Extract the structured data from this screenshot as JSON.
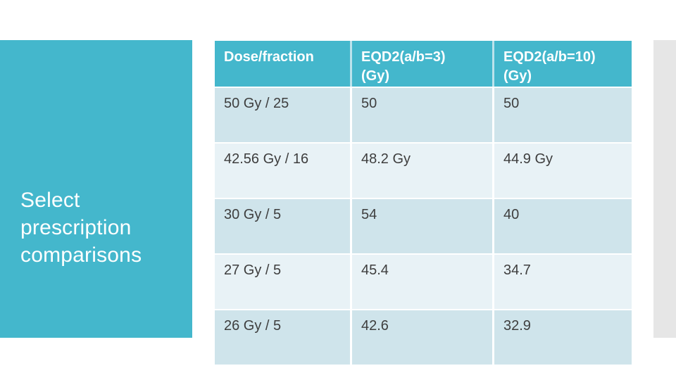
{
  "colors": {
    "accent": "#44b7cc",
    "header_divider": "#bce3ec",
    "row_odd": "#cfe4eb",
    "row_even": "#e8f2f6",
    "gray_bar": "#e6e6e6",
    "text_dark": "#3e3e3e",
    "title_text": "#ffffff"
  },
  "title": "Select prescription comparisons",
  "table": {
    "headers": [
      "Dose/fraction",
      "EQD2(a/b=3)\n(Gy)",
      "EQD2(a/b=10)\n(Gy)"
    ],
    "rows": [
      {
        "cells": [
          "50 Gy / 25",
          "50",
          "50"
        ]
      },
      {
        "cells": [
          "42.56 Gy / 16",
          "48.2 Gy",
          "44.9 Gy"
        ]
      },
      {
        "cells": [
          "30 Gy / 5",
          "54",
          "40"
        ]
      },
      {
        "cells": [
          "27 Gy / 5",
          "45.4",
          "34.7"
        ]
      },
      {
        "cells": [
          "26 Gy / 5",
          "42.6",
          "32.9"
        ]
      }
    ]
  }
}
